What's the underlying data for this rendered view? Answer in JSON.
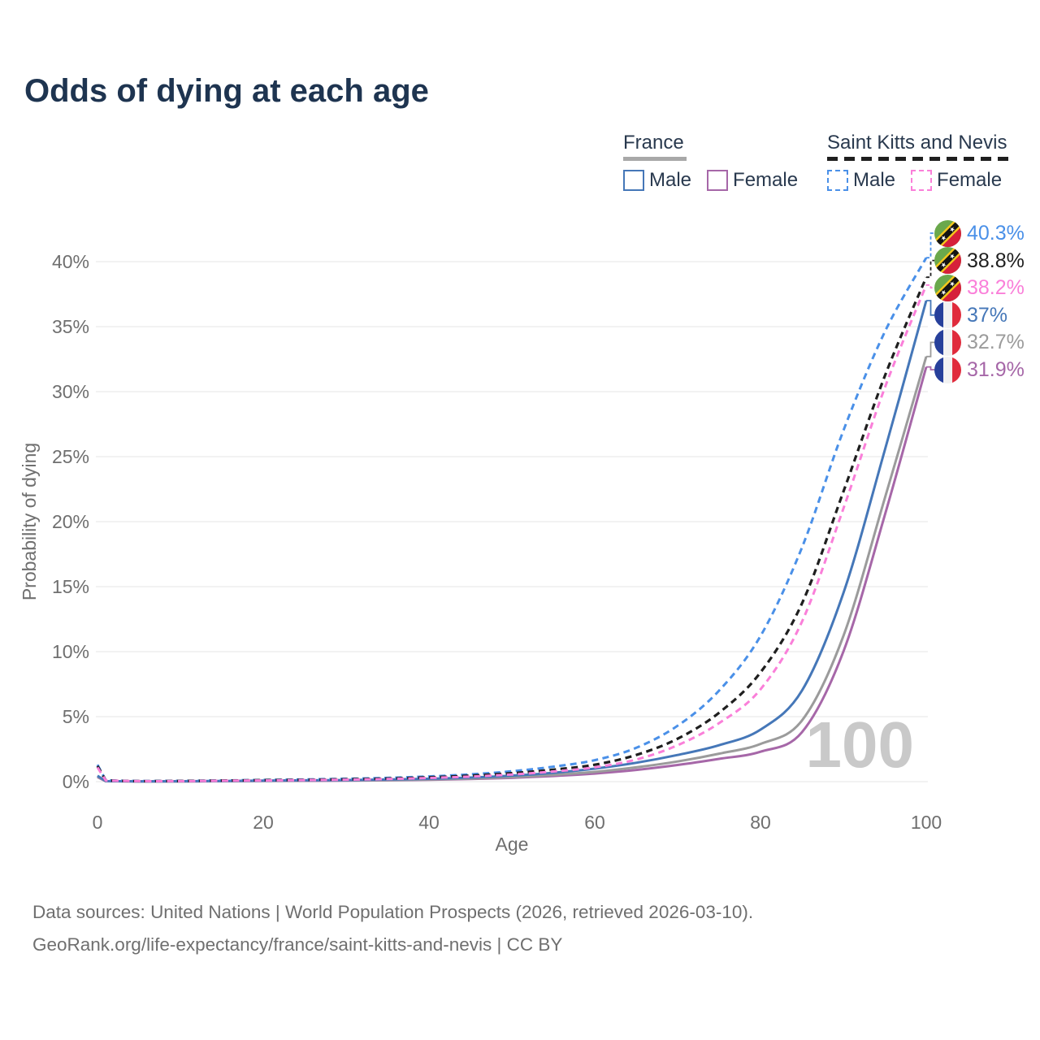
{
  "title": "Odds of dying at each age",
  "legend": {
    "groups": [
      {
        "name": "France",
        "line_style": "solid",
        "underline_color": "#a8a8a8",
        "items": [
          {
            "label": "Male",
            "color": "#4577b8"
          },
          {
            "label": "Female",
            "color": "#a667a8"
          }
        ]
      },
      {
        "name": "Saint Kitts and Nevis",
        "line_style": "dashed",
        "underline_color": "#1f1f1f",
        "items": [
          {
            "label": "Male",
            "color": "#4a90e8"
          },
          {
            "label": "Female",
            "color": "#fa7fd9"
          }
        ]
      }
    ]
  },
  "watermark": "100",
  "footer": {
    "line1": "Data sources: United Nations | World Population Prospects (2026, retrieved 2026-03-10).",
    "line2": "GeoRank.org/life-expectancy/france/saint-kitts-and-nevis | CC BY"
  },
  "flags": {
    "france": {
      "blue": "#27409b",
      "white": "#f2f2f2",
      "red": "#e02b3c"
    },
    "saint_kitts_and_nevis": {
      "green": "#6aa84c",
      "red": "#d6203a",
      "yellow": "#f5c81c",
      "black": "#141414",
      "star": "#ffffff"
    }
  },
  "chart_data": {
    "type": "line",
    "title": "Odds of dying at each age",
    "xlabel": "Age",
    "ylabel": "Probability of dying",
    "xlim": [
      0,
      100
    ],
    "ylim": [
      0,
      42
    ],
    "x_ticks": [
      0,
      20,
      40,
      60,
      80,
      100
    ],
    "y_ticks": [
      0,
      5,
      10,
      15,
      20,
      25,
      30,
      35,
      40
    ],
    "y_tick_suffix": "%",
    "grid": "horizontal",
    "legend_position": "top-right",
    "ages": [
      0,
      1,
      5,
      10,
      15,
      20,
      25,
      30,
      35,
      40,
      45,
      50,
      55,
      60,
      65,
      70,
      75,
      80,
      85,
      90,
      95,
      100
    ],
    "series": [
      {
        "id": "france-female",
        "name": "France Female",
        "country": "France",
        "sex": "Female",
        "style": "solid",
        "color": "#a667a8",
        "flag": "france",
        "end_label": "31.9%",
        "values": [
          0.35,
          0.03,
          0.02,
          0.02,
          0.03,
          0.05,
          0.06,
          0.08,
          0.1,
          0.14,
          0.2,
          0.29,
          0.43,
          0.62,
          0.9,
          1.28,
          1.75,
          2.3,
          3.8,
          10.0,
          20.5,
          31.9
        ]
      },
      {
        "id": "france-both",
        "name": "France Both sexes",
        "country": "France",
        "sex": "Both",
        "style": "solid",
        "color": "#9b9b9b",
        "flag": "france",
        "end_label": "32.7%",
        "values": [
          0.4,
          0.03,
          0.02,
          0.02,
          0.04,
          0.06,
          0.08,
          0.1,
          0.12,
          0.17,
          0.24,
          0.35,
          0.52,
          0.75,
          1.1,
          1.55,
          2.15,
          2.9,
          4.7,
          11.2,
          21.8,
          32.7
        ]
      },
      {
        "id": "france-male",
        "name": "France Male",
        "country": "France",
        "sex": "Male",
        "style": "solid",
        "color": "#4577b8",
        "flag": "france",
        "end_label": "37%",
        "values": [
          0.45,
          0.04,
          0.02,
          0.03,
          0.05,
          0.08,
          0.1,
          0.12,
          0.16,
          0.22,
          0.31,
          0.46,
          0.68,
          1.0,
          1.45,
          2.05,
          2.8,
          4.0,
          7.0,
          14.5,
          25.5,
          37.0
        ]
      },
      {
        "id": "skn-male",
        "name": "Saint Kitts and Nevis Male",
        "country": "Saint Kitts and Nevis",
        "sex": "Male",
        "style": "dashed",
        "color": "#4a90e8",
        "flag": "saint_kitts_and_nevis",
        "end_label": "40.3%",
        "values": [
          1.3,
          0.1,
          0.05,
          0.06,
          0.09,
          0.13,
          0.17,
          0.22,
          0.29,
          0.4,
          0.56,
          0.8,
          1.15,
          1.65,
          2.6,
          4.3,
          7.0,
          11.2,
          18.0,
          27.0,
          34.6,
          40.3
        ]
      },
      {
        "id": "skn-both",
        "name": "Saint Kitts and Nevis Both sexes",
        "country": "Saint Kitts and Nevis",
        "sex": "Both",
        "style": "dashed",
        "color": "#1f1f1f",
        "flag": "saint_kitts_and_nevis",
        "end_label": "38.8%",
        "values": [
          1.2,
          0.09,
          0.04,
          0.05,
          0.08,
          0.11,
          0.14,
          0.18,
          0.24,
          0.33,
          0.46,
          0.65,
          0.92,
          1.3,
          2.05,
          3.3,
          5.3,
          8.4,
          13.7,
          22.3,
          31.2,
          38.8
        ]
      },
      {
        "id": "skn-female",
        "name": "Saint Kitts and Nevis Female",
        "country": "Saint Kitts and Nevis",
        "sex": "Female",
        "style": "dashed",
        "color": "#fa7fd9",
        "flag": "saint_kitts_and_nevis",
        "end_label": "38.2%",
        "values": [
          1.1,
          0.08,
          0.04,
          0.04,
          0.07,
          0.09,
          0.12,
          0.15,
          0.2,
          0.28,
          0.39,
          0.55,
          0.78,
          1.1,
          1.7,
          2.8,
          4.5,
          7.1,
          12.3,
          21.0,
          30.3,
          38.2
        ]
      }
    ]
  }
}
